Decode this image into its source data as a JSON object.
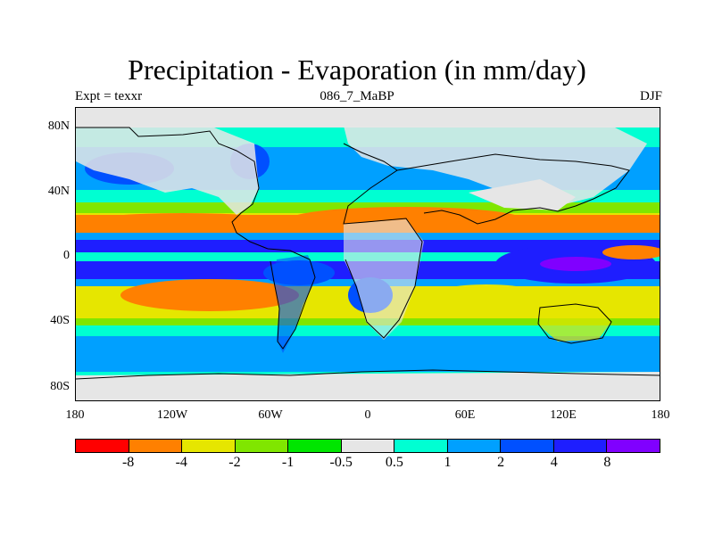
{
  "title": "Precipitation - Evaporation (in mm/day)",
  "subtitle_left": "Expt = texxr",
  "subtitle_center": "086_7_MaBP",
  "subtitle_right": "DJF",
  "lat_ticks": [
    "80N",
    "40N",
    "0",
    "40S",
    "80S"
  ],
  "lon_ticks": [
    "180",
    "120W",
    "60W",
    "0",
    "60E",
    "120E",
    "180"
  ],
  "colorbar": {
    "colors": [
      "#ff0000",
      "#ff8000",
      "#e6e600",
      "#80e600",
      "#00e600",
      "#e6e6e6",
      "#00ffd2",
      "#00a0ff",
      "#0050ff",
      "#1e1eff",
      "#8000ff"
    ],
    "labels": [
      "-8",
      "-4",
      "-2",
      "-1",
      "-0.5",
      "0.5",
      "1",
      "2",
      "4",
      "8"
    ]
  },
  "chart_data": {
    "type": "heatmap",
    "title": "Precipitation - Evaporation (in mm/day)",
    "experiment": "Expt = texxr",
    "period": "086_7_MaBP",
    "season": "DJF",
    "units": "mm/day",
    "x_range": [
      -180,
      180
    ],
    "y_range": [
      -90,
      90
    ],
    "contour_levels": [
      -8,
      -4,
      -2,
      -1,
      -0.5,
      0.5,
      1,
      2,
      4,
      8
    ],
    "zonal_profile": [
      {
        "lat": 80,
        "band": "0.5 to 1"
      },
      {
        "lat": 55,
        "band": "2 to 4"
      },
      {
        "lat": 40,
        "band": "0.5 to 1"
      },
      {
        "lat": 25,
        "band": "-4 to -2"
      },
      {
        "lat": 15,
        "band": "-8 to -4"
      },
      {
        "lat": 5,
        "band": "4 to 8"
      },
      {
        "lat": -5,
        "band": "0.5 to 1"
      },
      {
        "lat": -15,
        "band": "4 to 8"
      },
      {
        "lat": -25,
        "band": "-2 to -1"
      },
      {
        "lat": -35,
        "band": "-4 to -2"
      },
      {
        "lat": -45,
        "band": "0.5 to 1"
      },
      {
        "lat": -60,
        "band": "2 to 4"
      },
      {
        "lat": -80,
        "band": "-0.5 to 0.5"
      }
    ]
  }
}
